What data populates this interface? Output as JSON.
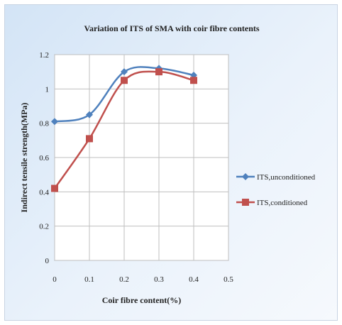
{
  "chart_data": {
    "type": "line",
    "title": "Variation of ITS of SMA with coir fibre contents",
    "xlabel": "Coir fibre content(%)",
    "ylabel": "Indirect tensile strength(MPa)",
    "x": [
      0,
      0.1,
      0.2,
      0.3,
      0.4
    ],
    "xlim": [
      0,
      0.5
    ],
    "ylim": [
      0,
      1.2
    ],
    "xticks": [
      "0",
      "0.1",
      "0.2",
      "0.3",
      "0.4",
      "0.5"
    ],
    "yticks": [
      "0",
      "0.2",
      "0.4",
      "0.6",
      "0.8",
      "1",
      "1.2"
    ],
    "grid": true,
    "smooth": true,
    "legend_position": "right",
    "series": [
      {
        "name": "ITS,unconditioned",
        "color": "#4f81bd",
        "marker": "diamond",
        "values": [
          0.81,
          0.85,
          1.1,
          1.12,
          1.08
        ]
      },
      {
        "name": "ITS,conditioned",
        "color": "#c0504d",
        "marker": "square",
        "values": [
          0.42,
          0.71,
          1.05,
          1.1,
          1.05
        ]
      }
    ]
  }
}
